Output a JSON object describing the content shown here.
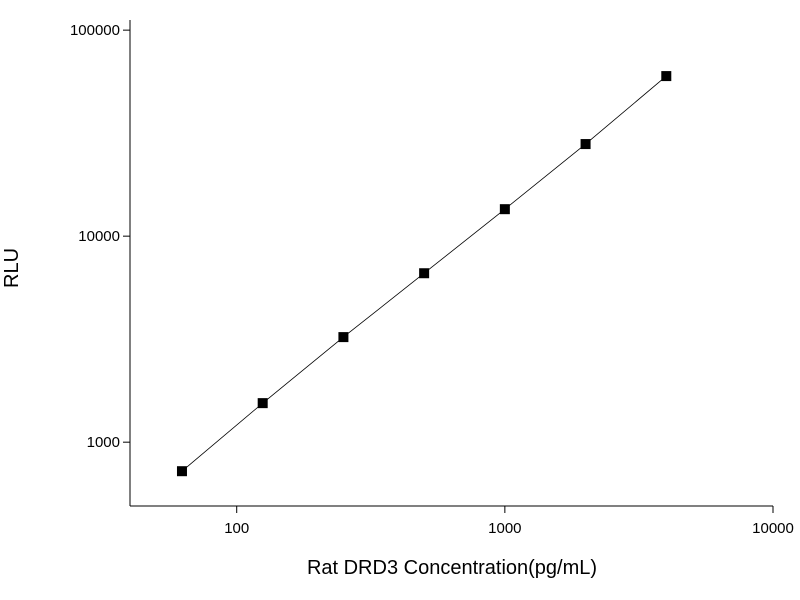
{
  "chart_data": {
    "type": "line",
    "x_label": "Rat DRD3 Concentration(pg/mL)",
    "y_label": "RLU",
    "x": [
      62.5,
      125,
      250,
      500,
      1000,
      2000,
      4000
    ],
    "series": [
      {
        "color": "#000000",
        "values": [
          723,
          1547,
          3236,
          6607,
          13520,
          27990,
          59840
        ]
      }
    ],
    "xscale": "log",
    "yscale": "log",
    "xlim": [
      40,
      10000
    ],
    "ylim": [
      490,
      112000
    ],
    "xticks": [
      100,
      1000,
      10000
    ],
    "yticks": [
      1000,
      10000,
      100000
    ],
    "grid": false
  }
}
